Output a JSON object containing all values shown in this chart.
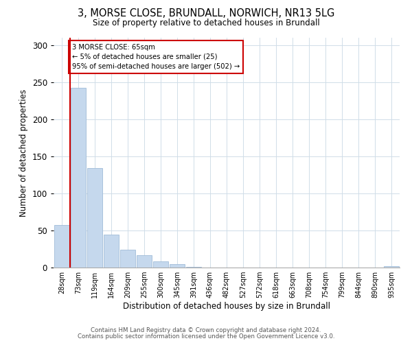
{
  "title": "3, MORSE CLOSE, BRUNDALL, NORWICH, NR13 5LG",
  "subtitle": "Size of property relative to detached houses in Brundall",
  "xlabel": "Distribution of detached houses by size in Brundall",
  "ylabel": "Number of detached properties",
  "bin_labels": [
    "28sqm",
    "73sqm",
    "119sqm",
    "164sqm",
    "209sqm",
    "255sqm",
    "300sqm",
    "345sqm",
    "391sqm",
    "436sqm",
    "482sqm",
    "527sqm",
    "572sqm",
    "618sqm",
    "663sqm",
    "708sqm",
    "754sqm",
    "799sqm",
    "844sqm",
    "890sqm",
    "935sqm"
  ],
  "bar_values": [
    57,
    242,
    134,
    44,
    24,
    17,
    8,
    5,
    1,
    0,
    0,
    0,
    0,
    0,
    0,
    0,
    0,
    0,
    0,
    0,
    2
  ],
  "bar_color": "#c5d8ed",
  "bar_edgecolor": "#a0bcd8",
  "vline_color": "#cc0000",
  "annotation_box_color": "#cc0000",
  "annotation_lines": [
    "3 MORSE CLOSE: 65sqm",
    "← 5% of detached houses are smaller (25)",
    "95% of semi-detached houses are larger (502) →"
  ],
  "ylim": [
    0,
    310
  ],
  "yticks": [
    0,
    50,
    100,
    150,
    200,
    250,
    300
  ],
  "footer1": "Contains HM Land Registry data © Crown copyright and database right 2024.",
  "footer2": "Contains public sector information licensed under the Open Government Licence v3.0.",
  "bg_color": "#ffffff",
  "grid_color": "#d0dde8"
}
